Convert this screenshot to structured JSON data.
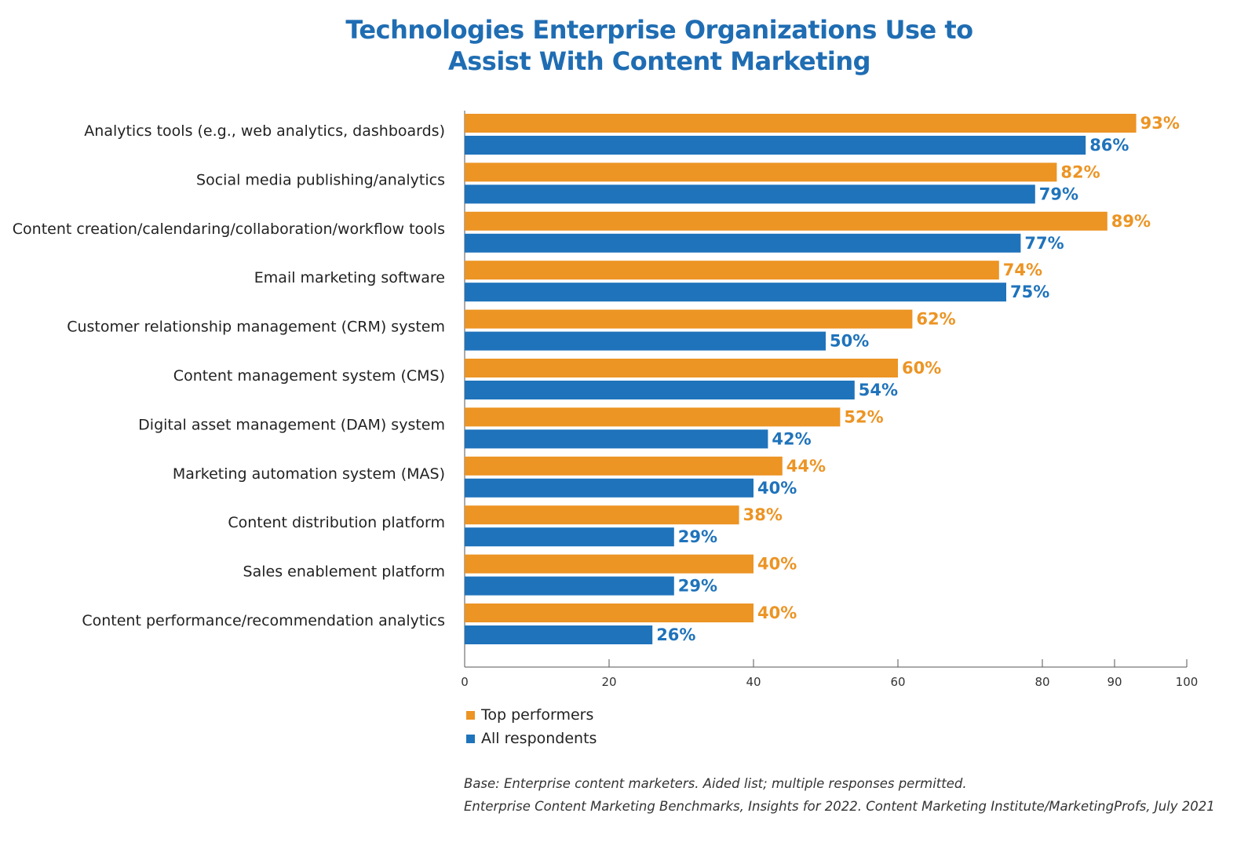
{
  "chart_data": {
    "type": "bar",
    "orientation": "horizontal",
    "title": [
      "Technologies Enterprise Organizations Use to",
      "Assist With Content Marketing"
    ],
    "categories": [
      "Analytics tools (e.g., web analytics, dashboards)",
      "Social media publishing/analytics",
      "Content creation/calendaring/collaboration/workflow tools",
      "Email marketing software",
      "Customer relationship management (CRM) system",
      "Content management system (CMS)",
      "Digital asset management (DAM) system",
      "Marketing automation system (MAS)",
      "Content distribution platform",
      "Sales enablement platform",
      "Content performance/recommendation analytics"
    ],
    "series": [
      {
        "name": "Top performers",
        "color": "#ec9424",
        "values": [
          93,
          82,
          89,
          74,
          62,
          60,
          52,
          44,
          38,
          40,
          40
        ]
      },
      {
        "name": "All respondents",
        "color": "#1f73bb",
        "values": [
          86,
          79,
          77,
          75,
          50,
          54,
          42,
          40,
          29,
          29,
          26
        ]
      }
    ],
    "value_suffix": "%",
    "xlim": [
      0,
      100
    ],
    "x_ticks": [
      0,
      20,
      40,
      60,
      80,
      90,
      100
    ],
    "grid": false,
    "legend_position": "bottom-left"
  },
  "notes": [
    "Base: Enterprise content marketers. Aided list; multiple responses permitted.",
    "Enterprise Content Marketing Benchmarks, Insights for 2022. Content Marketing Institute/MarketingProfs, July 2021"
  ]
}
